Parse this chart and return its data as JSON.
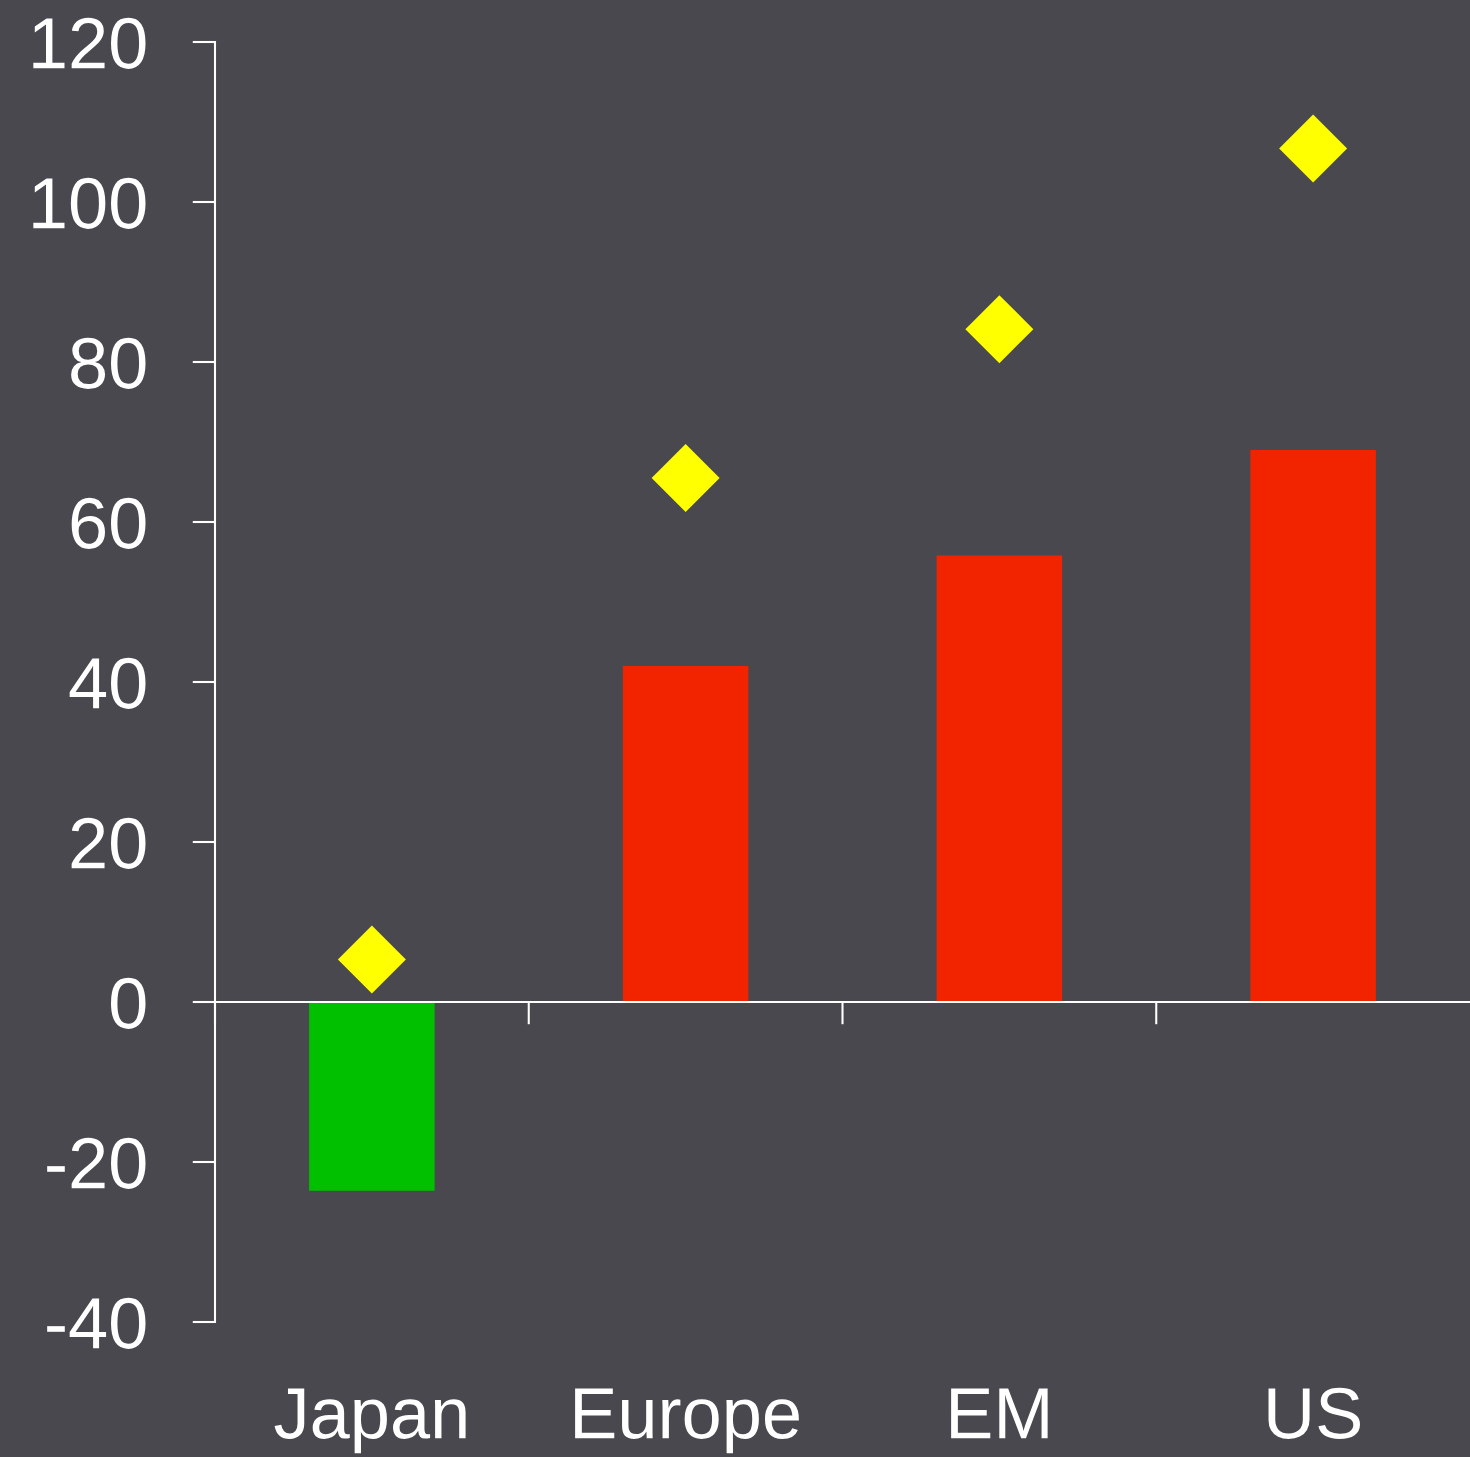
{
  "chart_data": {
    "type": "bar",
    "categories": [
      "Japan",
      "Europe",
      "EM",
      "US"
    ],
    "series": [
      {
        "colors": [
          "#00c000",
          "#f22400",
          "#f22400",
          "#f22400"
        ],
        "values": [
          -23.6,
          42,
          55.8,
          69
        ]
      },
      {
        "type": "scatter",
        "color": "#ffff00",
        "marker": "diamond",
        "values": [
          5.3,
          65.5,
          84.1,
          106.7
        ]
      }
    ],
    "ylim": [
      -40,
      120
    ],
    "yticks": [
      -40,
      -20,
      0,
      20,
      40,
      60,
      80,
      100,
      120
    ]
  }
}
